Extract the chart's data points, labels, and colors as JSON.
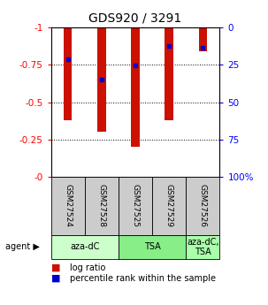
{
  "title": "GDS920 / 3291",
  "samples": [
    "GSM27524",
    "GSM27528",
    "GSM27525",
    "GSM27529",
    "GSM27526"
  ],
  "log_ratio": [
    -0.38,
    -0.3,
    -0.2,
    -0.38,
    -0.84
  ],
  "percentile_rank_left": [
    -0.79,
    -0.65,
    -0.745,
    -0.875,
    -0.865
  ],
  "bar_color": "#cc1100",
  "marker_color": "#0000cc",
  "yticks_left": [
    0.0,
    -0.25,
    -0.5,
    -0.75,
    -1.0
  ],
  "ytick_labels_left": [
    "-0",
    "-0.25",
    "-0.5",
    "-0.75",
    "-1"
  ],
  "yticks_right": [
    0,
    25,
    50,
    75,
    100
  ],
  "ytick_labels_right": [
    "0",
    "25",
    "50",
    "75",
    "100%"
  ],
  "background_color": "#ffffff",
  "gray_color": "#cccccc",
  "agent_green1": "#ccffcc",
  "agent_green2": "#88ee88",
  "agent_green3": "#aaffaa",
  "legend_log_ratio": "log ratio",
  "legend_percentile": "percentile rank within the sample",
  "bar_width": 0.25
}
